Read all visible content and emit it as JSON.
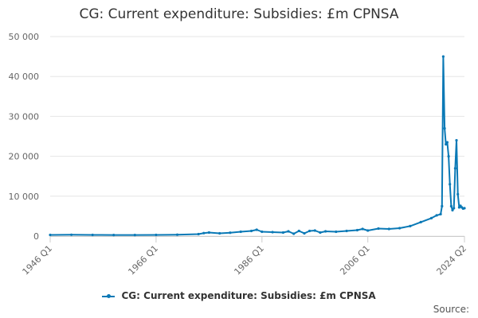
{
  "chart_data": {
    "type": "line",
    "title": "CG: Current expenditure: Subsidies: £m CPNSA",
    "xlabel": "",
    "ylabel": "",
    "x_range": [
      1946.0,
      2024.25
    ],
    "ylim": [
      0,
      50000
    ],
    "y_ticks": [
      0,
      10000,
      20000,
      30000,
      40000,
      50000
    ],
    "y_tick_labels": [
      "0",
      "10 000",
      "20 000",
      "30 000",
      "40 000",
      "50 000"
    ],
    "x_ticks": [
      {
        "pos": 1946.0,
        "label": "1946 Q1"
      },
      {
        "pos": 1966.0,
        "label": "1966 Q1"
      },
      {
        "pos": 1986.0,
        "label": "1986 Q1"
      },
      {
        "pos": 2006.0,
        "label": "2006 Q1"
      },
      {
        "pos": 2024.25,
        "label": "2024 Q2"
      }
    ],
    "grid": "horizontal",
    "legend_position": "bottom",
    "series": [
      {
        "name": "CG: Current expenditure: Subsidies: £m CPNSA",
        "color": "#0a79b6",
        "points": [
          [
            1946.0,
            300
          ],
          [
            1950.0,
            330
          ],
          [
            1954.0,
            300
          ],
          [
            1958.0,
            280
          ],
          [
            1962.0,
            270
          ],
          [
            1966.0,
            300
          ],
          [
            1970.0,
            350
          ],
          [
            1974.0,
            500
          ],
          [
            1975.0,
            750
          ],
          [
            1976.0,
            900
          ],
          [
            1978.0,
            700
          ],
          [
            1980.0,
            850
          ],
          [
            1982.0,
            1100
          ],
          [
            1984.0,
            1300
          ],
          [
            1985.0,
            1600
          ],
          [
            1986.0,
            1100
          ],
          [
            1988.0,
            1000
          ],
          [
            1990.0,
            900
          ],
          [
            1991.0,
            1200
          ],
          [
            1992.0,
            600
          ],
          [
            1993.0,
            1300
          ],
          [
            1994.0,
            700
          ],
          [
            1995.0,
            1300
          ],
          [
            1996.0,
            1400
          ],
          [
            1997.0,
            900
          ],
          [
            1998.0,
            1200
          ],
          [
            2000.0,
            1100
          ],
          [
            2002.0,
            1300
          ],
          [
            2004.0,
            1500
          ],
          [
            2005.0,
            1800
          ],
          [
            2006.0,
            1400
          ],
          [
            2008.0,
            1900
          ],
          [
            2010.0,
            1800
          ],
          [
            2012.0,
            2000
          ],
          [
            2014.0,
            2500
          ],
          [
            2016.0,
            3500
          ],
          [
            2018.0,
            4500
          ],
          [
            2019.0,
            5200
          ],
          [
            2019.75,
            5500
          ],
          [
            2020.0,
            7500
          ],
          [
            2020.25,
            45000
          ],
          [
            2020.5,
            27000
          ],
          [
            2020.75,
            23000
          ],
          [
            2021.0,
            23500
          ],
          [
            2021.25,
            20000
          ],
          [
            2021.5,
            13000
          ],
          [
            2021.75,
            7500
          ],
          [
            2022.0,
            6500
          ],
          [
            2022.25,
            7000
          ],
          [
            2022.5,
            17000
          ],
          [
            2022.75,
            24000
          ],
          [
            2023.0,
            10500
          ],
          [
            2023.25,
            7200
          ],
          [
            2023.5,
            7600
          ],
          [
            2023.75,
            7200
          ],
          [
            2024.0,
            6900
          ],
          [
            2024.25,
            7000
          ]
        ]
      }
    ]
  },
  "source_label": "Source:"
}
